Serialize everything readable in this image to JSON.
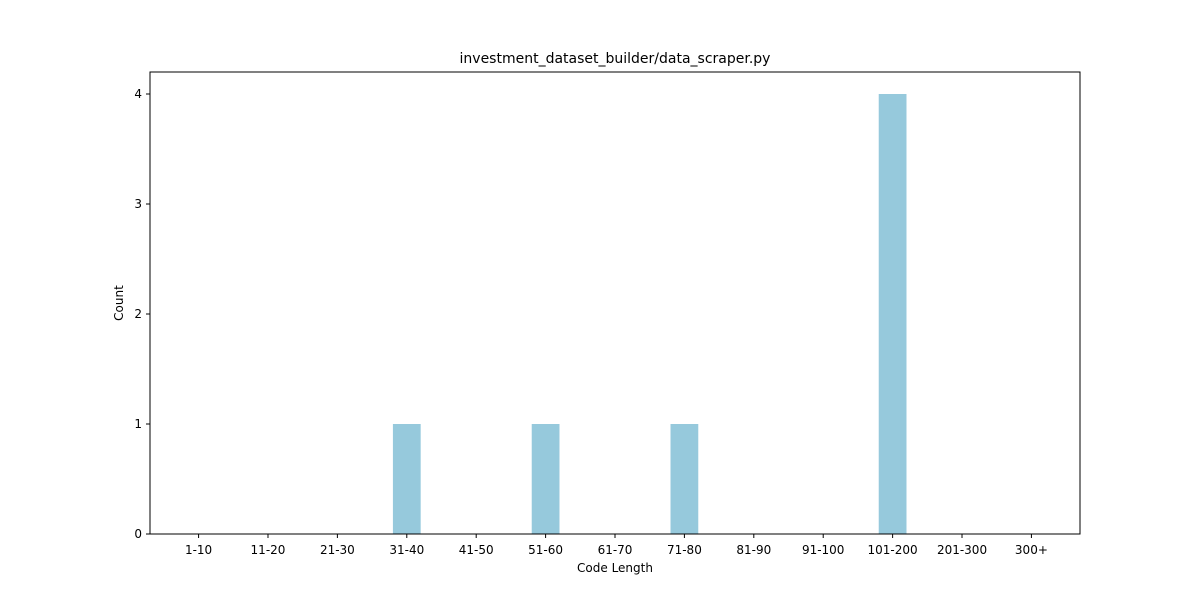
{
  "chart_data": {
    "type": "bar",
    "title": "investment_dataset_builder/data_scraper.py",
    "xlabel": "Code Length",
    "ylabel": "Count",
    "categories": [
      "1-10",
      "11-20",
      "21-30",
      "31-40",
      "41-50",
      "51-60",
      "61-70",
      "71-80",
      "81-90",
      "91-100",
      "101-200",
      "201-300",
      "300+"
    ],
    "values": [
      0,
      0,
      0,
      1,
      0,
      1,
      0,
      1,
      0,
      0,
      4,
      0,
      0
    ],
    "ylim": [
      0,
      4.2
    ],
    "yticks": [
      0,
      1,
      2,
      3,
      4
    ],
    "grid": false,
    "legend": "none",
    "colors": {
      "bar": "#96c9dc",
      "axes": "#000000",
      "background": "#ffffff"
    }
  }
}
